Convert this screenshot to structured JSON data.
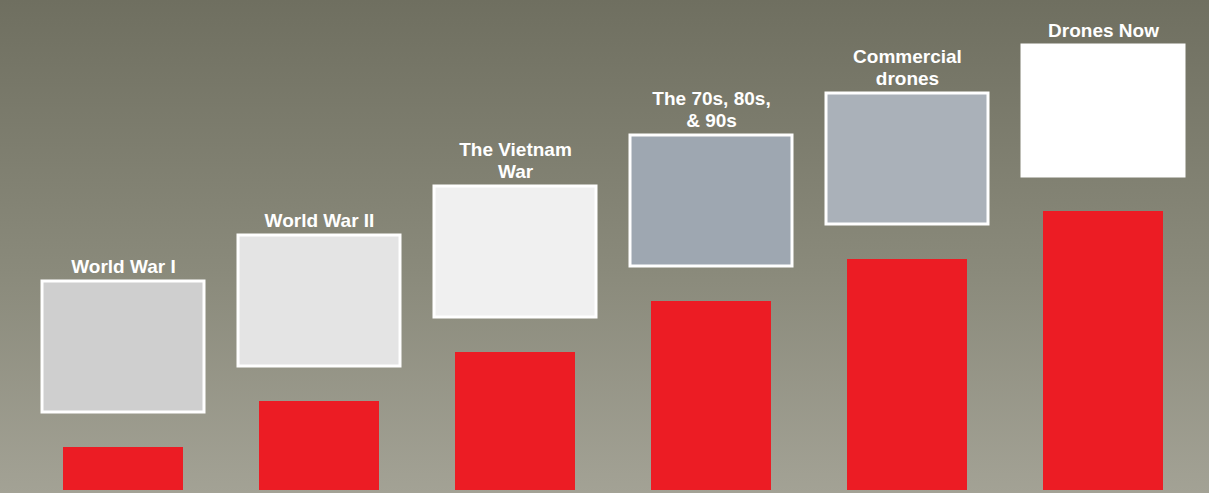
{
  "chart_data": {
    "type": "bar",
    "categories": [
      "World War I",
      "World War II",
      "The Vietnam War",
      "The 70s, 80s, & 90s",
      "Commercial drones",
      "Drones Now"
    ],
    "values": [
      43,
      89,
      138,
      189,
      231,
      279
    ],
    "color": "#ec1c24",
    "ylim": [
      0,
      480
    ],
    "yticks": [],
    "tick_labels": false
  }
}
